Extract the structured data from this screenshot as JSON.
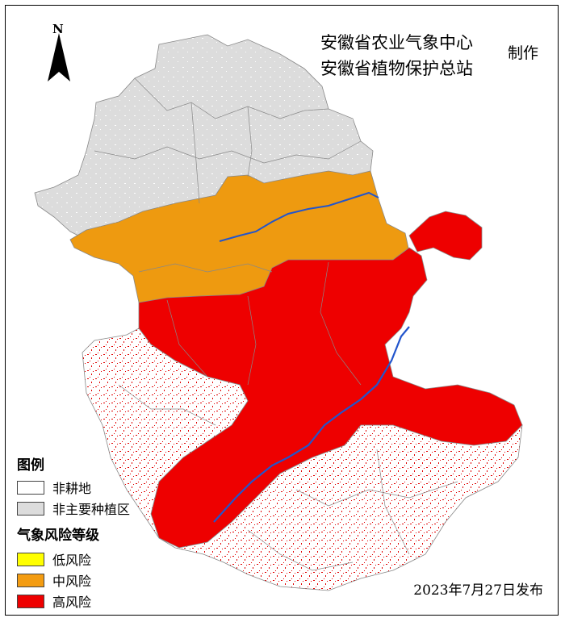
{
  "header": {
    "producer_line1": "安徽省农业气象中心",
    "producer_line2": "安徽省植物保护总站",
    "made_by": "制作"
  },
  "compass": {
    "label": "N"
  },
  "legend": {
    "title": "图例",
    "items": [
      {
        "label": "非耕地",
        "color": "#ffffff"
      },
      {
        "label": "非主要种植区",
        "color": "#dcdcdc"
      }
    ],
    "risk_title": "气象风险等级",
    "risk_items": [
      {
        "label": "低风险",
        "color": "#ffff00"
      },
      {
        "label": "中风险",
        "color": "#f39c12"
      },
      {
        "label": "高风险",
        "color": "#ee0000"
      }
    ]
  },
  "publish_date": "2023年7月27日发布"
}
